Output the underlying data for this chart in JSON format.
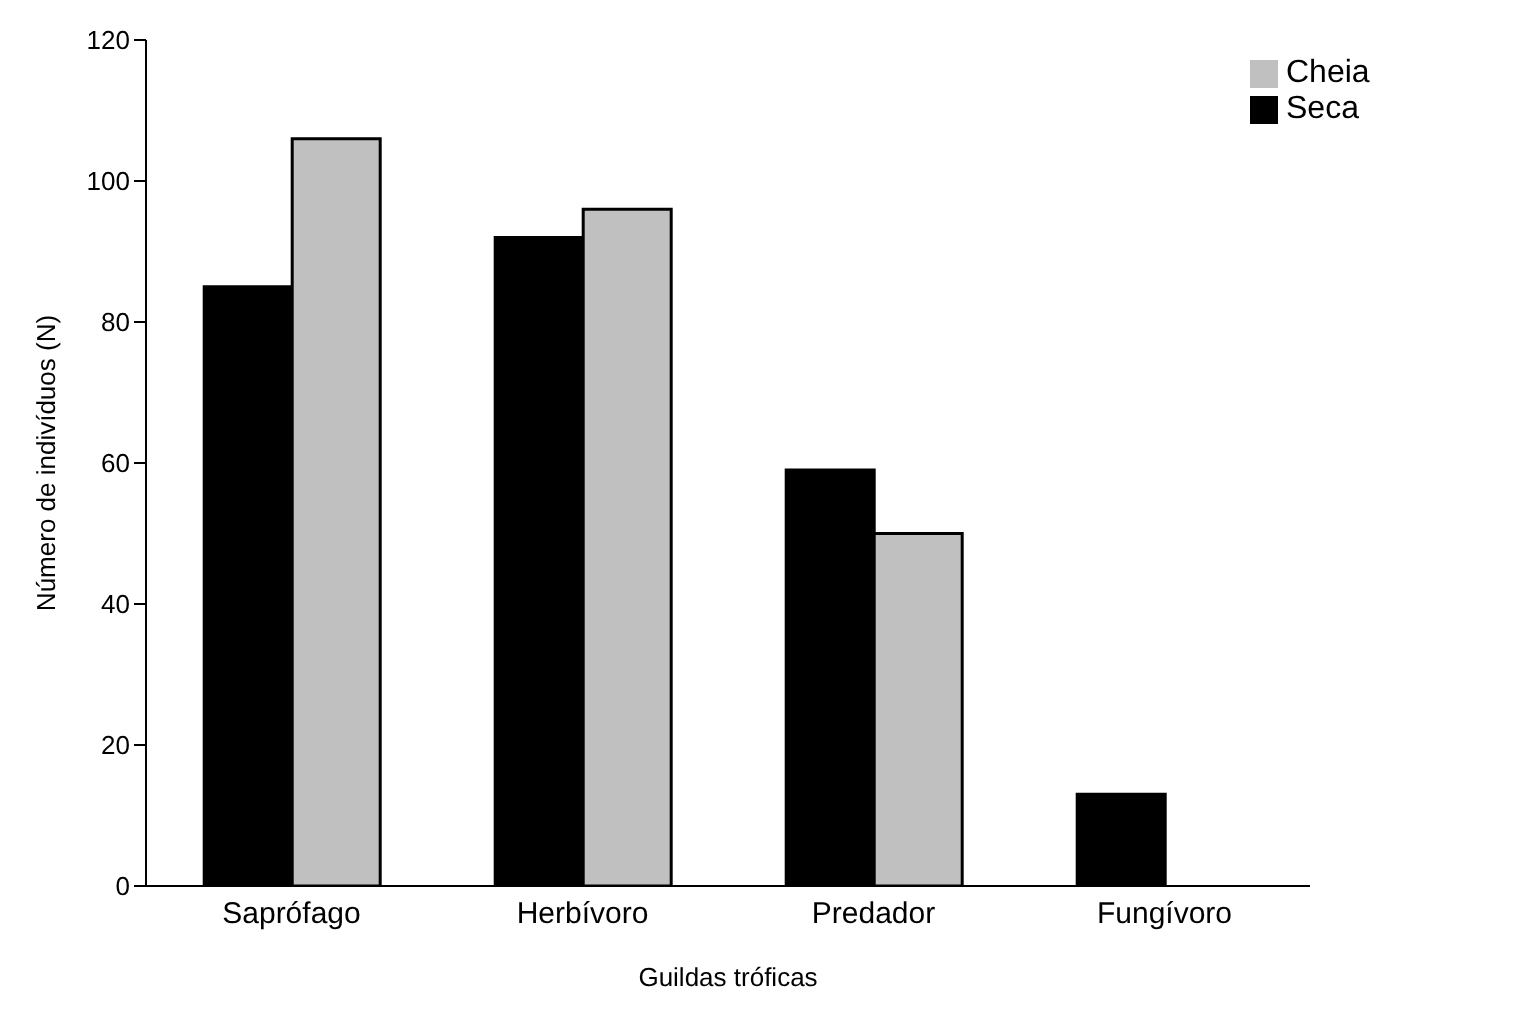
{
  "chart_data": {
    "type": "bar",
    "xlabel": "Guildas tróficas",
    "ylabel": "Número de indivíduos (N)",
    "categories": [
      "Saprófago",
      "Herbívoro",
      "Predador",
      "Fungívoro"
    ],
    "series": [
      {
        "name": "Seca",
        "color": "#000000",
        "values": [
          85,
          92,
          59,
          13
        ]
      },
      {
        "name": "Cheia",
        "color": "#c0c0c0",
        "values": [
          106,
          96,
          50,
          0
        ]
      }
    ],
    "ylim": [
      0,
      120
    ],
    "yticks": [
      0,
      20,
      40,
      60,
      80,
      100,
      120
    ],
    "grid": false,
    "legend": "top right"
  }
}
